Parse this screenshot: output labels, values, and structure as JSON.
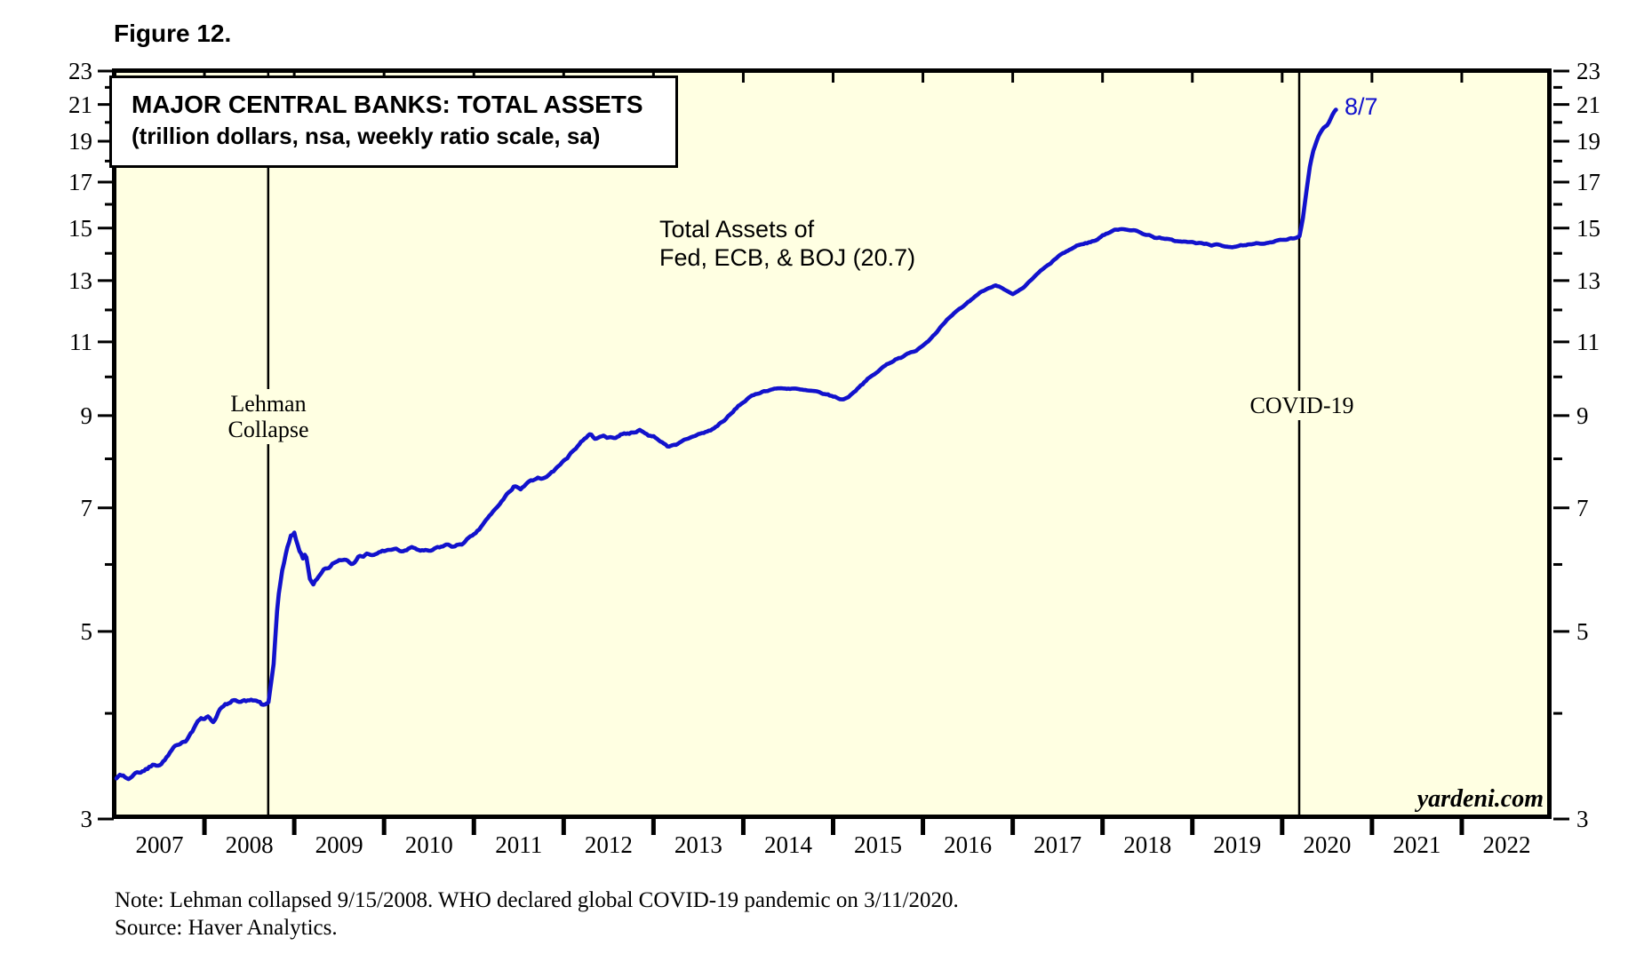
{
  "figure_label": "Figure 12.",
  "title": {
    "line1": "MAJOR CENTRAL BANKS: TOTAL ASSETS",
    "line2": "(trillion dollars, nsa, weekly ratio scale, sa)"
  },
  "annotations": {
    "series_label_line1": "Total Assets of",
    "series_label_line2": "Fed, ECB, & BOJ (20.7)",
    "lehman_line1": "Lehman",
    "lehman_line2": "Collapse",
    "covid": "COVID-19",
    "last_point_label": "8/7"
  },
  "watermark": "yardeni.com",
  "notes": {
    "line1": "Note: Lehman collapsed 9/15/2008. WHO declared global COVID-19 pandemic on 3/11/2020.",
    "line2": "Source: Haver Analytics."
  },
  "colors": {
    "line": "#1212CC",
    "plot_bg": "#FFFFE2",
    "axis": "#000000",
    "annotation_blue": "#1212CC"
  },
  "chart_data": {
    "type": "line",
    "title": "MAJOR CENTRAL BANKS: TOTAL ASSETS",
    "subtitle": "(trillion dollars, nsa, weekly ratio scale, sa)",
    "yscale": "log",
    "grid": false,
    "legend_position": "none",
    "ylim": [
      3,
      23
    ],
    "xlim": [
      2007,
      2023
    ],
    "yticks_major": [
      3,
      5,
      7,
      9,
      11,
      13,
      15,
      17,
      19,
      21,
      23
    ],
    "yticks_minor": [
      4,
      6,
      8,
      10,
      12,
      14,
      16,
      18,
      20,
      22
    ],
    "x_years": [
      2007,
      2008,
      2009,
      2010,
      2011,
      2012,
      2013,
      2014,
      2015,
      2016,
      2017,
      2018,
      2019,
      2020,
      2021,
      2022
    ],
    "events": [
      {
        "label": "Lehman Collapse",
        "date": "9/15/2008",
        "x": 2008.71
      },
      {
        "label": "COVID-19",
        "date": "3/11/2020",
        "x": 2020.19
      }
    ],
    "series": [
      {
        "name": "Total Assets of Fed, ECB, & BOJ",
        "units": "trillion dollars",
        "last_value": 20.7,
        "last_date": "8/7",
        "points": [
          [
            2007.02,
            3.36
          ],
          [
            2007.1,
            3.38
          ],
          [
            2007.16,
            3.34
          ],
          [
            2007.22,
            3.4
          ],
          [
            2007.3,
            3.42
          ],
          [
            2007.38,
            3.44
          ],
          [
            2007.44,
            3.5
          ],
          [
            2007.5,
            3.47
          ],
          [
            2007.58,
            3.54
          ],
          [
            2007.66,
            3.63
          ],
          [
            2007.73,
            3.7
          ],
          [
            2007.8,
            3.73
          ],
          [
            2007.88,
            3.83
          ],
          [
            2007.96,
            3.95
          ],
          [
            2008.04,
            3.97
          ],
          [
            2008.1,
            3.91
          ],
          [
            2008.16,
            4.02
          ],
          [
            2008.23,
            4.08
          ],
          [
            2008.3,
            4.13
          ],
          [
            2008.4,
            4.1
          ],
          [
            2008.5,
            4.16
          ],
          [
            2008.58,
            4.12
          ],
          [
            2008.65,
            4.08
          ],
          [
            2008.71,
            4.1
          ],
          [
            2008.77,
            4.62
          ],
          [
            2008.81,
            5.3
          ],
          [
            2008.86,
            5.88
          ],
          [
            2008.9,
            6.12
          ],
          [
            2008.96,
            6.45
          ],
          [
            2009.0,
            6.5
          ],
          [
            2009.04,
            6.28
          ],
          [
            2009.1,
            6.08
          ],
          [
            2009.13,
            6.18
          ],
          [
            2009.17,
            5.82
          ],
          [
            2009.21,
            5.66
          ],
          [
            2009.27,
            5.76
          ],
          [
            2009.33,
            5.9
          ],
          [
            2009.4,
            5.96
          ],
          [
            2009.48,
            6.06
          ],
          [
            2009.56,
            6.1
          ],
          [
            2009.64,
            6.04
          ],
          [
            2009.72,
            6.12
          ],
          [
            2009.8,
            6.18
          ],
          [
            2009.9,
            6.14
          ],
          [
            2009.98,
            6.22
          ],
          [
            2010.1,
            6.26
          ],
          [
            2010.2,
            6.21
          ],
          [
            2010.3,
            6.28
          ],
          [
            2010.4,
            6.24
          ],
          [
            2010.5,
            6.21
          ],
          [
            2010.6,
            6.28
          ],
          [
            2010.7,
            6.33
          ],
          [
            2010.8,
            6.3
          ],
          [
            2010.9,
            6.38
          ],
          [
            2011.0,
            6.5
          ],
          [
            2011.1,
            6.68
          ],
          [
            2011.2,
            6.9
          ],
          [
            2011.3,
            7.1
          ],
          [
            2011.4,
            7.32
          ],
          [
            2011.45,
            7.45
          ],
          [
            2011.52,
            7.34
          ],
          [
            2011.6,
            7.5
          ],
          [
            2011.7,
            7.56
          ],
          [
            2011.8,
            7.62
          ],
          [
            2011.9,
            7.76
          ],
          [
            2012.0,
            7.96
          ],
          [
            2012.1,
            8.16
          ],
          [
            2012.2,
            8.4
          ],
          [
            2012.3,
            8.56
          ],
          [
            2012.36,
            8.44
          ],
          [
            2012.45,
            8.52
          ],
          [
            2012.55,
            8.46
          ],
          [
            2012.65,
            8.56
          ],
          [
            2012.75,
            8.6
          ],
          [
            2012.85,
            8.63
          ],
          [
            2012.95,
            8.54
          ],
          [
            2013.05,
            8.44
          ],
          [
            2013.15,
            8.3
          ],
          [
            2013.25,
            8.28
          ],
          [
            2013.35,
            8.42
          ],
          [
            2013.45,
            8.52
          ],
          [
            2013.55,
            8.58
          ],
          [
            2013.65,
            8.66
          ],
          [
            2013.75,
            8.82
          ],
          [
            2013.85,
            9.0
          ],
          [
            2013.95,
            9.25
          ],
          [
            2014.05,
            9.42
          ],
          [
            2014.15,
            9.56
          ],
          [
            2014.25,
            9.63
          ],
          [
            2014.35,
            9.68
          ],
          [
            2014.45,
            9.7
          ],
          [
            2014.55,
            9.68
          ],
          [
            2014.65,
            9.65
          ],
          [
            2014.75,
            9.62
          ],
          [
            2014.85,
            9.58
          ],
          [
            2014.95,
            9.52
          ],
          [
            2015.05,
            9.44
          ],
          [
            2015.12,
            9.4
          ],
          [
            2015.2,
            9.53
          ],
          [
            2015.3,
            9.76
          ],
          [
            2015.4,
            9.96
          ],
          [
            2015.5,
            10.15
          ],
          [
            2015.6,
            10.35
          ],
          [
            2015.7,
            10.5
          ],
          [
            2015.8,
            10.6
          ],
          [
            2015.9,
            10.72
          ],
          [
            2016.0,
            10.9
          ],
          [
            2016.1,
            11.15
          ],
          [
            2016.2,
            11.45
          ],
          [
            2016.3,
            11.75
          ],
          [
            2016.4,
            12.0
          ],
          [
            2016.5,
            12.25
          ],
          [
            2016.6,
            12.5
          ],
          [
            2016.7,
            12.7
          ],
          [
            2016.8,
            12.85
          ],
          [
            2016.9,
            12.68
          ],
          [
            2017.0,
            12.5
          ],
          [
            2017.08,
            12.66
          ],
          [
            2017.17,
            12.9
          ],
          [
            2017.25,
            13.15
          ],
          [
            2017.33,
            13.4
          ],
          [
            2017.42,
            13.62
          ],
          [
            2017.5,
            13.85
          ],
          [
            2017.58,
            14.05
          ],
          [
            2017.67,
            14.2
          ],
          [
            2017.75,
            14.35
          ],
          [
            2017.83,
            14.4
          ],
          [
            2017.92,
            14.5
          ],
          [
            2018.0,
            14.7
          ],
          [
            2018.1,
            14.86
          ],
          [
            2018.2,
            14.98
          ],
          [
            2018.3,
            14.94
          ],
          [
            2018.4,
            14.84
          ],
          [
            2018.5,
            14.72
          ],
          [
            2018.6,
            14.62
          ],
          [
            2018.7,
            14.55
          ],
          [
            2018.8,
            14.5
          ],
          [
            2018.9,
            14.45
          ],
          [
            2019.0,
            14.42
          ],
          [
            2019.15,
            14.36
          ],
          [
            2019.3,
            14.3
          ],
          [
            2019.45,
            14.26
          ],
          [
            2019.6,
            14.3
          ],
          [
            2019.75,
            14.38
          ],
          [
            2019.9,
            14.46
          ],
          [
            2020.0,
            14.52
          ],
          [
            2020.1,
            14.56
          ],
          [
            2020.19,
            14.6
          ],
          [
            2020.23,
            15.4
          ],
          [
            2020.27,
            16.6
          ],
          [
            2020.31,
            17.8
          ],
          [
            2020.35,
            18.6
          ],
          [
            2020.4,
            19.2
          ],
          [
            2020.45,
            19.6
          ],
          [
            2020.5,
            19.9
          ],
          [
            2020.54,
            20.2
          ],
          [
            2020.58,
            20.55
          ],
          [
            2020.6,
            20.7
          ]
        ]
      }
    ]
  }
}
